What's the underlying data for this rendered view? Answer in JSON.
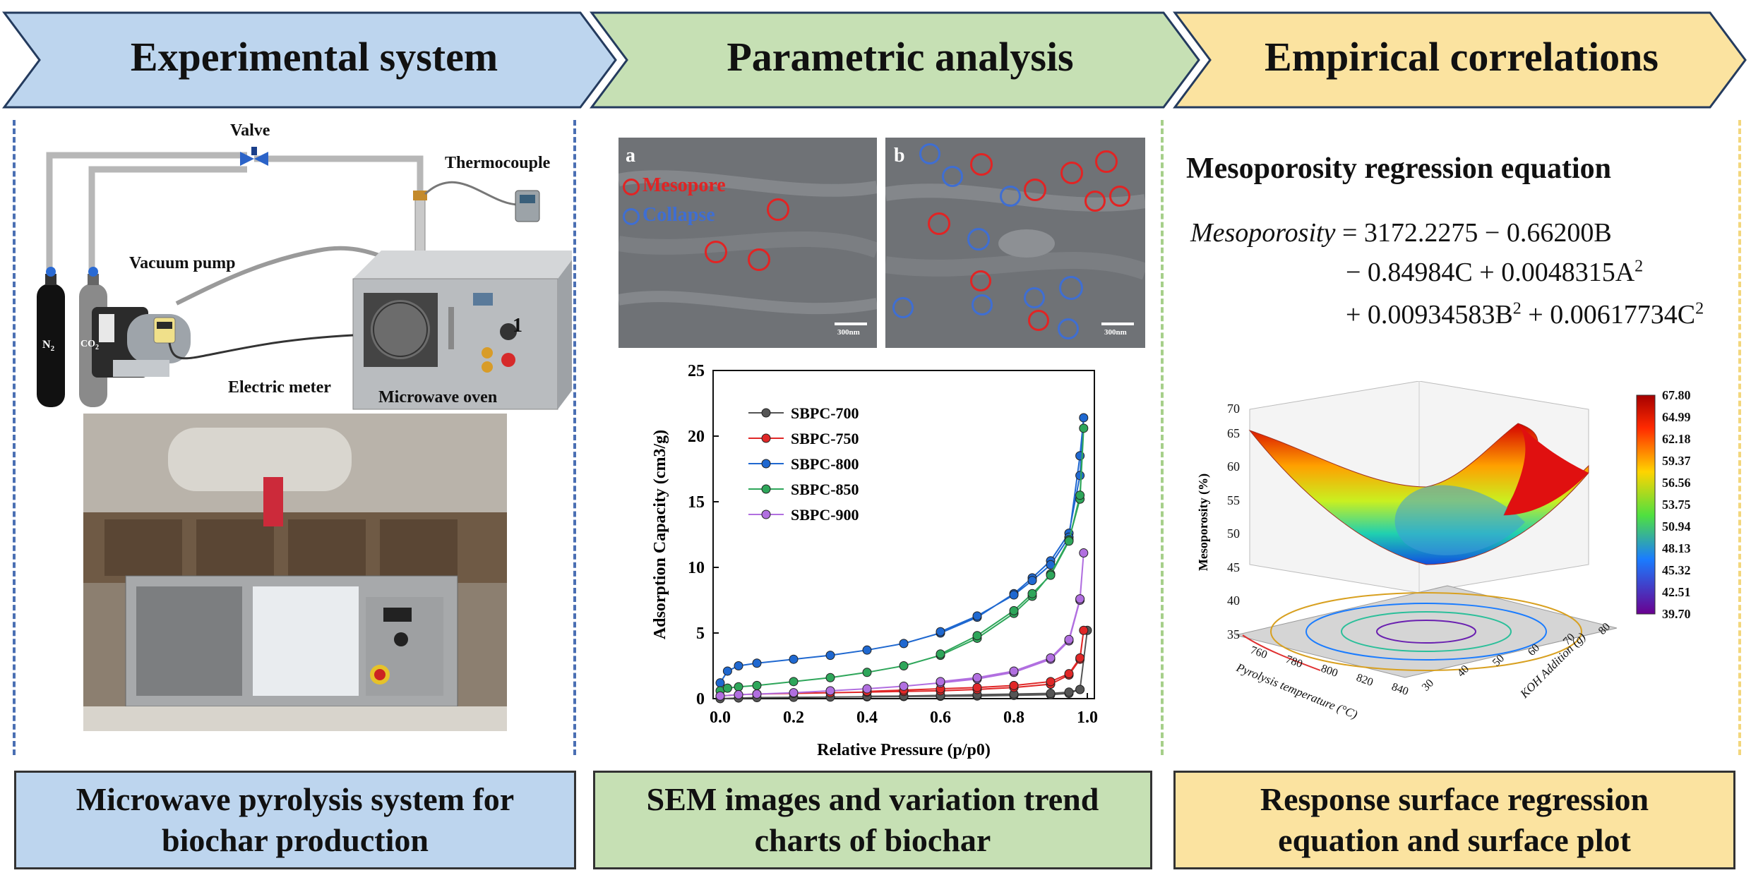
{
  "headers": {
    "experimental": "Experimental system",
    "parametric": "Parametric analysis",
    "empirical": "Empirical correlations"
  },
  "colors": {
    "blue_header": "#bdd5ee",
    "green_header": "#c6e0b4",
    "yellow_header": "#fbe3a0",
    "series_700": "#555555",
    "series_750": "#e02727",
    "series_800": "#1f68d0",
    "series_850": "#2ea65a",
    "series_900": "#b16fe0"
  },
  "system": {
    "valve": "Valve",
    "thermocouple": "Thermocouple",
    "vacuum_pump": "Vacuum pump",
    "n2": "N",
    "n2_sub": "2",
    "co2": "CO",
    "co2_sub": "2",
    "electric_meter": "Electric meter",
    "microwave_oven": "Microwave oven",
    "oven_number": "1"
  },
  "sem": {
    "a_label": "a",
    "b_label": "b",
    "mesopore": "Mesopore",
    "collapse": "Collapse",
    "scale_a": "300nm",
    "scale_b": "300nm"
  },
  "chart_data": {
    "type": "line",
    "xlabel": "Relative Pressure (p/p0)",
    "ylabel": "Adsorption Capacity (cm3/g)",
    "xlim": [
      0,
      1.0
    ],
    "ylim": [
      0,
      25
    ],
    "xticks": [
      "0.0",
      "0.2",
      "0.4",
      "0.6",
      "0.8",
      "1.0"
    ],
    "yticks": [
      "0",
      "5",
      "10",
      "15",
      "20",
      "25"
    ],
    "legend_position": "top-left",
    "series": [
      {
        "name": "SBPC-700",
        "x": [
          0.0,
          0.05,
          0.1,
          0.2,
          0.3,
          0.4,
          0.5,
          0.6,
          0.7,
          0.8,
          0.9,
          0.95,
          0.98,
          1.0,
          0.98,
          0.95,
          0.9,
          0.8,
          0.7,
          0.6,
          0.5,
          0.4
        ],
        "y": [
          0.0,
          0.05,
          0.08,
          0.1,
          0.12,
          0.14,
          0.16,
          0.18,
          0.2,
          0.25,
          0.3,
          0.4,
          0.7,
          5.2,
          0.7,
          0.5,
          0.4,
          0.35,
          0.3,
          0.25,
          0.2,
          0.18
        ]
      },
      {
        "name": "SBPC-750",
        "x": [
          0.0,
          0.05,
          0.1,
          0.2,
          0.3,
          0.4,
          0.5,
          0.6,
          0.7,
          0.8,
          0.9,
          0.95,
          0.98,
          0.99,
          0.98,
          0.95,
          0.9,
          0.8,
          0.7,
          0.6,
          0.5,
          0.4
        ],
        "y": [
          0.2,
          0.3,
          0.35,
          0.4,
          0.45,
          0.5,
          0.55,
          0.6,
          0.7,
          0.85,
          1.1,
          1.8,
          3.0,
          5.2,
          3.1,
          1.9,
          1.3,
          1.0,
          0.85,
          0.75,
          0.65,
          0.55
        ]
      },
      {
        "name": "SBPC-800",
        "x": [
          0.0,
          0.02,
          0.05,
          0.1,
          0.2,
          0.3,
          0.4,
          0.5,
          0.6,
          0.7,
          0.8,
          0.85,
          0.9,
          0.95,
          0.98,
          0.99,
          0.98,
          0.95,
          0.9,
          0.85,
          0.8,
          0.7,
          0.6
        ],
        "y": [
          1.2,
          2.1,
          2.5,
          2.7,
          3.0,
          3.3,
          3.7,
          4.2,
          5.0,
          6.2,
          8.0,
          9.2,
          10.5,
          12.6,
          17.0,
          21.4,
          18.5,
          12.3,
          10.2,
          9.0,
          7.9,
          6.3,
          5.1
        ]
      },
      {
        "name": "SBPC-850",
        "x": [
          0.0,
          0.02,
          0.05,
          0.1,
          0.2,
          0.3,
          0.4,
          0.5,
          0.6,
          0.7,
          0.8,
          0.85,
          0.9,
          0.95,
          0.98,
          0.99,
          0.98,
          0.95,
          0.9,
          0.85,
          0.8,
          0.7,
          0.6
        ],
        "y": [
          0.6,
          0.8,
          0.9,
          1.0,
          1.3,
          1.6,
          2.0,
          2.5,
          3.3,
          4.6,
          6.5,
          7.8,
          9.5,
          12.1,
          15.2,
          20.6,
          15.5,
          12.0,
          9.4,
          8.0,
          6.7,
          4.8,
          3.4
        ]
      },
      {
        "name": "SBPC-900",
        "x": [
          0.0,
          0.05,
          0.1,
          0.2,
          0.3,
          0.4,
          0.5,
          0.6,
          0.7,
          0.8,
          0.9,
          0.95,
          0.98,
          0.99,
          0.98,
          0.95,
          0.9,
          0.8,
          0.7,
          0.6
        ],
        "y": [
          0.2,
          0.3,
          0.35,
          0.45,
          0.6,
          0.75,
          0.95,
          1.2,
          1.5,
          2.0,
          3.0,
          4.4,
          7.5,
          11.1,
          7.6,
          4.5,
          3.1,
          2.1,
          1.6,
          1.3
        ]
      }
    ]
  },
  "equation": {
    "title": "Mesoporosity regression equation",
    "lhs": "Mesoporosity",
    "line1": "= 3172.2275 − 0.66200B",
    "line2a": "− 0.84984C + 0.0048315A",
    "line2_sup": "2",
    "line3a": "+ 0.00934583B",
    "line3_sup1": "2",
    "line3b": " + 0.00617734C",
    "line3_sup2": "2"
  },
  "surface": {
    "zlabel": "Mesoporosity (%)",
    "xlabel": "Pyrolysis temperature (°C)",
    "ylabel": "KOH Addition (g)",
    "zticks": [
      "35",
      "40",
      "45",
      "50",
      "55",
      "60",
      "65",
      "70"
    ],
    "xticks": [
      "760",
      "780",
      "800",
      "820",
      "840"
    ],
    "yticks": [
      "30",
      "40",
      "50",
      "60",
      "70",
      "80"
    ],
    "colorbar": [
      "67.80",
      "64.99",
      "62.18",
      "59.37",
      "56.56",
      "53.75",
      "50.94",
      "48.13",
      "45.32",
      "42.51",
      "39.70"
    ]
  },
  "bottom": {
    "left_line1": "Microwave pyrolysis system for",
    "left_line2": "biochar production",
    "mid_line1": "SEM images and variation trend",
    "mid_line2": "charts of biochar",
    "right_line1": "Response surface regression",
    "right_line2": "equation and surface plot"
  }
}
